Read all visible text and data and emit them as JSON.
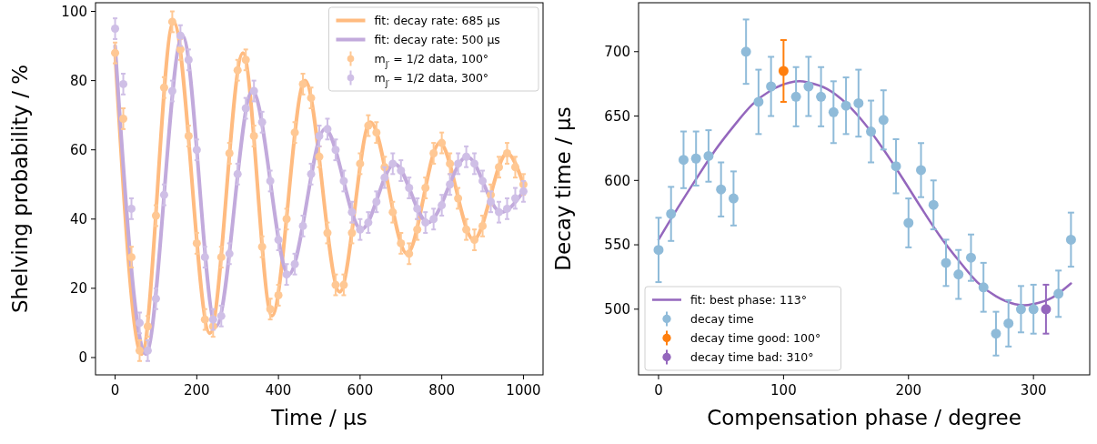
{
  "chart_data": [
    {
      "type": "scatter",
      "xlabel": "Time / μs",
      "ylabel": "Shelving probability / %",
      "xlim": [
        -48,
        1048
      ],
      "ylim": [
        -5,
        102.5
      ],
      "xticks": [
        0,
        200,
        400,
        600,
        800,
        1000
      ],
      "yticks": [
        0,
        20,
        40,
        60,
        80,
        100
      ],
      "legend": "top right",
      "marker": "circle",
      "series": [
        {
          "name": "fit: decay rate: 685 μs",
          "type": "line",
          "marker": "none",
          "color": "#ffbb80",
          "x": [
            0,
            65,
            143,
            232,
            313,
            384,
            465,
            550,
            625,
            715,
            795,
            878,
            960,
            1000
          ],
          "values": [
            88,
            1,
            97,
            7,
            88,
            12,
            80,
            19,
            68,
            30,
            62,
            34,
            59,
            50
          ]
        },
        {
          "name": "fit: decay rate: 500 μs",
          "type": "line",
          "marker": "none",
          "color": "#c2aadc",
          "x": [
            0,
            75,
            165,
            247,
            336,
            425,
            514,
            603,
            684,
            766,
            862,
            945,
            1000
          ],
          "values": [
            90,
            1,
            93,
            9,
            77,
            24,
            66,
            37,
            56,
            39,
            58,
            42,
            48
          ]
        },
        {
          "name": "m$_{J′}$ = 1/2 data, 100°",
          "color": "#ffc894",
          "x": [
            0,
            20,
            40,
            60,
            80,
            100,
            120,
            140,
            160,
            180,
            200,
            220,
            240,
            260,
            280,
            300,
            320,
            340,
            360,
            380,
            400,
            420,
            440,
            460,
            480,
            500,
            520,
            540,
            560,
            580,
            600,
            620,
            640,
            660,
            680,
            700,
            720,
            740,
            760,
            780,
            800,
            820,
            840,
            860,
            880,
            900,
            920,
            940,
            960,
            980,
            1000
          ],
          "values": [
            88,
            69,
            29,
            2,
            9,
            41,
            78,
            97,
            89,
            64,
            33,
            11,
            9,
            29,
            59,
            83,
            86,
            64,
            32,
            14,
            18,
            40,
            65,
            79,
            75,
            58,
            36,
            21,
            21,
            36,
            56,
            67,
            65,
            55,
            42,
            33,
            30,
            37,
            49,
            59,
            62,
            56,
            46,
            37,
            34,
            38,
            47,
            55,
            59,
            55,
            50
          ],
          "errors": [
            3,
            3,
            3,
            3,
            3,
            3,
            3,
            3,
            3,
            3,
            3,
            3,
            3,
            3,
            3,
            3,
            3,
            3,
            3,
            3,
            3,
            3,
            3,
            3,
            3,
            3,
            3,
            3,
            3,
            3,
            3,
            3,
            3,
            3,
            3,
            3,
            3,
            3,
            3,
            3,
            3,
            3,
            3,
            3,
            3,
            3,
            3,
            3,
            3,
            3,
            3
          ]
        },
        {
          "name": "m$_{J′}$ = 1/2 data, 300°",
          "color": "#cfbfe6",
          "x": [
            0,
            20,
            40,
            60,
            80,
            100,
            120,
            140,
            160,
            180,
            200,
            220,
            240,
            260,
            280,
            300,
            320,
            340,
            360,
            380,
            400,
            420,
            440,
            460,
            480,
            500,
            520,
            540,
            560,
            580,
            600,
            620,
            640,
            660,
            680,
            700,
            720,
            740,
            760,
            780,
            800,
            820,
            840,
            860,
            880,
            900,
            920,
            940,
            960,
            980,
            1000
          ],
          "values": [
            95,
            79,
            43,
            10,
            2,
            17,
            47,
            77,
            93,
            86,
            60,
            29,
            11,
            12,
            30,
            53,
            72,
            77,
            68,
            51,
            34,
            24,
            27,
            38,
            53,
            64,
            66,
            60,
            51,
            42,
            37,
            39,
            45,
            52,
            56,
            54,
            49,
            43,
            39,
            40,
            44,
            50,
            56,
            58,
            56,
            51,
            45,
            42,
            43,
            46,
            48
          ],
          "errors": [
            3,
            3,
            3,
            3,
            3,
            3,
            3,
            3,
            3,
            3,
            3,
            3,
            3,
            3,
            3,
            3,
            3,
            3,
            3,
            3,
            3,
            3,
            3,
            3,
            3,
            3,
            3,
            3,
            3,
            3,
            3,
            3,
            3,
            3,
            3,
            3,
            3,
            3,
            3,
            3,
            3,
            3,
            3,
            3,
            3,
            3,
            3,
            3,
            3,
            3,
            3
          ]
        }
      ]
    },
    {
      "type": "scatter",
      "xlabel": "Compensation phase / degree",
      "ylabel": "Decay time / μs",
      "xlim": [
        -16,
        345
      ],
      "ylim": [
        449,
        738
      ],
      "xticks": [
        0,
        100,
        200,
        300
      ],
      "yticks": [
        500,
        550,
        600,
        650,
        700
      ],
      "legend": "bottom left",
      "marker": "circle",
      "series": [
        {
          "name": "fit: best phase: 113°",
          "type": "line",
          "marker": "none",
          "color": "#9467bd",
          "x": [
            0,
            15,
            30,
            45,
            60,
            75,
            90,
            105,
            113,
            120,
            135,
            150,
            165,
            180,
            195,
            210,
            225,
            240,
            255,
            270,
            285,
            293,
            300,
            315,
            330
          ],
          "values": [
            554,
            578,
            601,
            623,
            642,
            659,
            670,
            676,
            677,
            676,
            671,
            660,
            644,
            624,
            602,
            579,
            557,
            538,
            521,
            510,
            504,
            503,
            504,
            509,
            520
          ]
        },
        {
          "name": "decay time",
          "color": "#8fbbd9",
          "x": [
            0,
            10,
            20,
            30,
            40,
            50,
            60,
            70,
            80,
            90,
            110,
            120,
            130,
            140,
            150,
            160,
            170,
            180,
            190,
            200,
            210,
            220,
            230,
            240,
            250,
            260,
            270,
            280,
            290,
            300,
            320,
            330
          ],
          "values": [
            546,
            574,
            616,
            617,
            619,
            593,
            586,
            700,
            661,
            673,
            665,
            673,
            665,
            653,
            658,
            660,
            638,
            647,
            611,
            567,
            608,
            581,
            536,
            527,
            540,
            517,
            481,
            489,
            500,
            500,
            512,
            554
          ],
          "errors": [
            25,
            21,
            22,
            21,
            20,
            21,
            21,
            25,
            25,
            23,
            23,
            23,
            23,
            24,
            22,
            26,
            24,
            23,
            21,
            19,
            21,
            19,
            18,
            19,
            18,
            19,
            17,
            18,
            18,
            19,
            18,
            21
          ]
        },
        {
          "name": "decay time good: 100°",
          "color": "#ff7f0e",
          "x": [
            100
          ],
          "values": [
            685
          ],
          "errors": [
            24
          ]
        },
        {
          "name": "decay time bad: 310°",
          "color": "#9467bd",
          "x": [
            310
          ],
          "values": [
            500
          ],
          "errors": [
            19
          ]
        }
      ]
    }
  ]
}
